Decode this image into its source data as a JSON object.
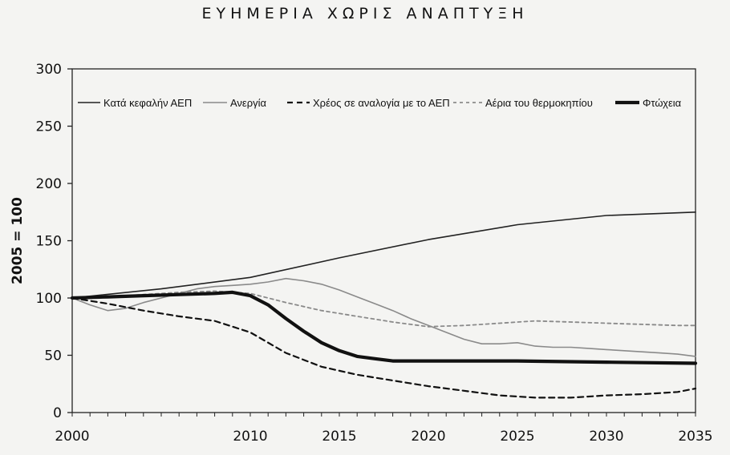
{
  "chart_data": {
    "type": "line",
    "title": "ΕΥΗΜΕΡΙΑ ΧΩΡΙΣ ΑΝΑΠΤΥΞΗ",
    "xlabel": "",
    "ylabel": "2005 = 100",
    "xlim": [
      2000,
      2035
    ],
    "ylim": [
      0,
      300
    ],
    "xticks": [
      2000,
      2010,
      2015,
      2020,
      2025,
      2030,
      2035
    ],
    "yticks": [
      0,
      50,
      100,
      150,
      200,
      250,
      300
    ],
    "grid": false,
    "legend_position": "top",
    "series": [
      {
        "name": "Κατά κεφαλήν ΑΕΠ",
        "style": "solid-thin",
        "color": "#222222",
        "x": [
          2000,
          2005,
          2010,
          2015,
          2020,
          2025,
          2030,
          2035
        ],
        "y": [
          100,
          108,
          118,
          135,
          151,
          164,
          172,
          175
        ]
      },
      {
        "name": "Ανεργία",
        "style": "solid-gray",
        "color": "#8a8a8a",
        "x": [
          2000,
          2001,
          2002,
          2003,
          2004,
          2005,
          2006,
          2007,
          2008,
          2009,
          2010,
          2011,
          2012,
          2013,
          2014,
          2015,
          2016,
          2017,
          2018,
          2019,
          2020,
          2021,
          2022,
          2023,
          2024,
          2025,
          2026,
          2027,
          2028,
          2029,
          2030,
          2031,
          2032,
          2033,
          2034,
          2035
        ],
        "y": [
          100,
          94,
          89,
          91,
          96,
          100,
          104,
          108,
          110,
          111,
          112,
          114,
          117,
          115,
          112,
          107,
          101,
          95,
          89,
          82,
          76,
          70,
          64,
          60,
          60,
          61,
          58,
          57,
          57,
          56,
          55,
          54,
          53,
          52,
          51,
          49
        ]
      },
      {
        "name": "Χρέος σε αναλογία με το ΑΕΠ",
        "style": "dashed",
        "color": "#111111",
        "x": [
          2000,
          2002,
          2004,
          2006,
          2008,
          2010,
          2012,
          2014,
          2016,
          2018,
          2020,
          2022,
          2024,
          2026,
          2028,
          2030,
          2032,
          2034,
          2035
        ],
        "y": [
          100,
          95,
          89,
          84,
          80,
          70,
          52,
          40,
          33,
          28,
          23,
          19,
          15,
          13,
          13,
          15,
          16,
          18,
          21
        ]
      },
      {
        "name": "Αέρια του θερμοκηπίου",
        "style": "dotted-gray",
        "color": "#8a8a8a",
        "x": [
          2000,
          2002,
          2004,
          2006,
          2008,
          2010,
          2012,
          2014,
          2016,
          2018,
          2020,
          2022,
          2024,
          2026,
          2028,
          2030,
          2032,
          2034,
          2035
        ],
        "y": [
          100,
          101,
          103,
          105,
          106,
          104,
          96,
          89,
          84,
          79,
          75,
          76,
          78,
          80,
          79,
          78,
          77,
          76,
          76
        ]
      },
      {
        "name": "Φτώχεια",
        "style": "thick",
        "color": "#111111",
        "x": [
          2000,
          2002,
          2004,
          2006,
          2008,
          2009,
          2010,
          2011,
          2012,
          2013,
          2014,
          2015,
          2016,
          2017,
          2018,
          2020,
          2025,
          2030,
          2035
        ],
        "y": [
          100,
          101,
          102,
          103,
          104,
          105,
          102,
          94,
          82,
          71,
          61,
          54,
          49,
          47,
          45,
          45,
          45,
          44,
          43
        ]
      }
    ]
  }
}
